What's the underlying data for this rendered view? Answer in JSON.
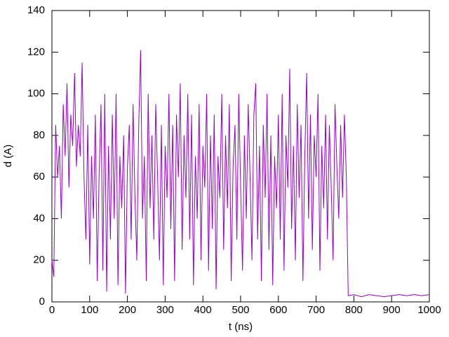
{
  "chart_data": {
    "type": "line",
    "xlabel": "t (ns)",
    "ylabel": "d (A)",
    "xlim": [
      0,
      1000
    ],
    "ylim": [
      0,
      140
    ],
    "xticks": [
      0,
      100,
      200,
      300,
      400,
      500,
      600,
      700,
      800,
      900,
      1000
    ],
    "yticks": [
      0,
      20,
      40,
      60,
      80,
      100,
      120,
      140
    ],
    "grid": false,
    "x": [
      0,
      5,
      10,
      15,
      20,
      25,
      30,
      35,
      40,
      45,
      50,
      55,
      60,
      65,
      70,
      75,
      80,
      85,
      90,
      95,
      100,
      105,
      110,
      115,
      120,
      125,
      130,
      135,
      140,
      145,
      150,
      155,
      160,
      165,
      170,
      175,
      180,
      185,
      190,
      195,
      200,
      205,
      210,
      215,
      220,
      225,
      230,
      235,
      240,
      245,
      250,
      255,
      260,
      265,
      270,
      275,
      280,
      285,
      290,
      295,
      300,
      305,
      310,
      315,
      320,
      325,
      330,
      335,
      340,
      345,
      350,
      355,
      360,
      365,
      370,
      375,
      380,
      385,
      390,
      395,
      400,
      405,
      410,
      415,
      420,
      425,
      430,
      435,
      440,
      445,
      450,
      455,
      460,
      465,
      470,
      475,
      480,
      485,
      490,
      495,
      500,
      505,
      510,
      515,
      520,
      525,
      530,
      535,
      540,
      545,
      550,
      555,
      560,
      565,
      570,
      575,
      580,
      585,
      590,
      595,
      600,
      605,
      610,
      615,
      620,
      625,
      630,
      635,
      640,
      645,
      650,
      655,
      660,
      665,
      670,
      675,
      680,
      685,
      690,
      695,
      700,
      705,
      710,
      715,
      720,
      725,
      730,
      735,
      740,
      745,
      750,
      755,
      760,
      765,
      770,
      775,
      780,
      785,
      800,
      820,
      840,
      860,
      880,
      900,
      920,
      940,
      960,
      980,
      1000
    ],
    "series": [
      {
        "color": "#9400d3",
        "values": [
          20,
          12,
          85,
          60,
          75,
          40,
          95,
          70,
          105,
          55,
          90,
          75,
          110,
          65,
          85,
          70,
          115,
          60,
          30,
          85,
          18,
          70,
          40,
          90,
          10,
          60,
          95,
          15,
          100,
          5,
          75,
          30,
          90,
          40,
          100,
          8,
          70,
          45,
          80,
          4,
          65,
          85,
          30,
          95,
          50,
          20,
          85,
          121,
          40,
          70,
          10,
          100,
          45,
          80,
          30,
          95,
          60,
          20,
          85,
          8,
          75,
          50,
          100,
          35,
          85,
          10,
          90,
          60,
          105,
          25,
          80,
          50,
          100,
          30,
          90,
          8,
          70,
          40,
          95,
          20,
          75,
          55,
          100,
          15,
          80,
          35,
          90,
          6,
          70,
          50,
          100,
          25,
          80,
          45,
          95,
          10,
          65,
          85,
          30,
          100,
          55,
          15,
          80,
          40,
          95,
          60,
          20,
          90,
          105,
          30,
          75,
          10,
          85,
          50,
          100,
          25,
          80,
          8,
          70,
          45,
          90,
          30,
          100,
          15,
          80,
          55,
          112,
          35,
          75,
          20,
          95,
          50,
          85,
          10,
          70,
          110,
          40,
          90,
          25,
          80,
          60,
          100,
          15,
          75,
          45,
          90,
          30,
          85,
          55,
          20,
          95,
          65,
          40,
          85,
          50,
          90,
          60,
          3,
          3.5,
          2.5,
          3.5,
          3,
          2.5,
          3,
          3.5,
          3,
          3.5,
          3,
          3.5
        ]
      }
    ]
  }
}
